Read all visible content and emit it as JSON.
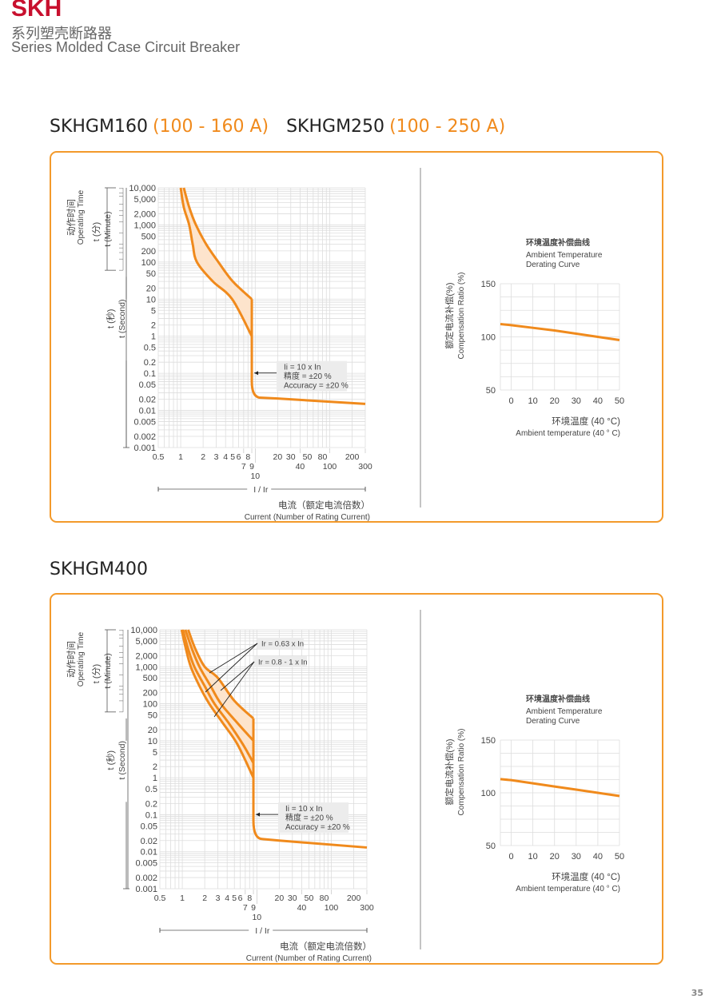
{
  "header": {
    "brand": "SKH",
    "subtitle_cn": "系列塑壳断路器",
    "subtitle_en": "Series Molded Case Circuit Breaker"
  },
  "sections": [
    {
      "models": [
        {
          "name": "SKHGM160",
          "range": "(100 - 160 A)"
        },
        {
          "name": "SKHGM250",
          "range": "(100 - 250 A)"
        }
      ]
    },
    {
      "models": [
        {
          "name": "SKHGM400",
          "range": ""
        }
      ]
    }
  ],
  "page_number": "35",
  "colors": {
    "accent": "#f08a1c",
    "brand": "#c8102e",
    "band_fill": "#fde4cc",
    "grid": "#dddddd"
  },
  "chart_data": [
    {
      "type": "line",
      "scale": "log-log",
      "title": "",
      "ylabel_cn": "动作时间",
      "ylabel_en": "Operating Time",
      "minute_label_cn": "t (分)",
      "minute_label_en": "t (Minute)",
      "second_label_cn": "t (秒)",
      "second_label_en": "t (Second)",
      "xaxis_symbol": "I / Ir",
      "xlabel_cn": "电流（额定电流倍数）",
      "xlabel_en": "Current (Number of Rating Current)",
      "xlim": [
        0.5,
        300
      ],
      "ylim": [
        0.001,
        10000
      ],
      "x_ticks": [
        "0.5",
        "1",
        "2",
        "3",
        "4",
        "5",
        "6",
        "7",
        "8",
        "9",
        "10",
        "20",
        "30",
        "40",
        "50",
        "80",
        "100",
        "200",
        "300"
      ],
      "y_ticks": [
        "10,000",
        "5,000",
        "2,000",
        "1,000",
        "500",
        "200",
        "100",
        "50",
        "20",
        "10",
        "5",
        "2",
        "1",
        "0.5",
        "0.2",
        "0.1",
        "0.05",
        "0.02",
        "0.01",
        "0.005",
        "0.002",
        "0.001"
      ],
      "grid": true,
      "annotations": [
        {
          "lines": [
            "Ii = 10 x In",
            "精度 = ±20 %",
            "Accuracy = ±20 %"
          ]
        }
      ],
      "series": [
        {
          "role": "band-upper",
          "points": [
            [
              1.1,
              10000
            ],
            [
              1.3,
              3000
            ],
            [
              1.6,
              1000
            ],
            [
              2.2,
              300
            ],
            [
              3.2,
              100
            ],
            [
              5,
              30
            ],
            [
              9,
              10
            ]
          ]
        },
        {
          "role": "band-lower",
          "points": [
            [
              1.0,
              10000
            ],
            [
              1.1,
              3000
            ],
            [
              1.3,
              1000
            ],
            [
              1.45,
              300
            ],
            [
              1.65,
              100
            ],
            [
              2.7,
              30
            ],
            [
              4.9,
              10
            ],
            [
              9,
              1
            ]
          ]
        },
        {
          "role": "instantaneous",
          "points": [
            [
              9,
              10
            ],
            [
              9,
              0.06
            ],
            [
              9.6,
              0.03
            ],
            [
              12,
              0.022
            ],
            [
              20,
              0.021
            ],
            [
              300,
              0.015
            ]
          ]
        }
      ]
    },
    {
      "type": "line",
      "title_cn": "环境温度补偿曲线",
      "title_en_1": "Ambient  Temperature",
      "title_en_2": "Derating Curve",
      "ylabel_cn": "额定电流补偿(%)",
      "ylabel_en": "Compensation Ratio (%)",
      "xlabel_cn": "环境温度 (40 °C)",
      "xlabel_en": "Ambient temperature (40 ° C)",
      "xlim": [
        -5,
        50
      ],
      "ylim": [
        50,
        150
      ],
      "x_ticks": [
        "0",
        "10",
        "20",
        "30",
        "40",
        "50"
      ],
      "y_ticks": [
        "150",
        "100",
        "50"
      ],
      "grid": true,
      "series": [
        {
          "points": [
            [
              -5,
              112
            ],
            [
              0,
              111
            ],
            [
              10,
              108.5
            ],
            [
              20,
              106
            ],
            [
              30,
              103
            ],
            [
              40,
              100
            ],
            [
              50,
              97
            ]
          ]
        }
      ]
    },
    {
      "type": "line",
      "scale": "log-log",
      "title": "",
      "ylabel_cn": "动作时间",
      "ylabel_en": "Operating Time",
      "minute_label_cn": "t (分)",
      "minute_label_en": "t (Minute)",
      "second_label_cn": "t (秒)",
      "second_label_en": "t (Second)",
      "xaxis_symbol": "I / Ir",
      "xlabel_cn": "电流（额定电流倍数）",
      "xlabel_en": "Current (Number of Rating Current)",
      "xlim": [
        0.5,
        300
      ],
      "ylim": [
        0.001,
        10000
      ],
      "x_ticks": [
        "0.5",
        "1",
        "2",
        "3",
        "4",
        "5",
        "6",
        "7",
        "8",
        "9",
        "10",
        "20",
        "30",
        "40",
        "50",
        "80",
        "100",
        "200",
        "300"
      ],
      "y_ticks": [
        "10,000",
        "5,000",
        "2,000",
        "1,000",
        "500",
        "200",
        "100",
        "50",
        "20",
        "10",
        "5",
        "2",
        "1",
        "0.5",
        "0.2",
        "0.1",
        "0.05",
        "0.02",
        "0.01",
        "0.005",
        "0.002",
        "0.001"
      ],
      "grid": true,
      "annotations": [
        {
          "lines": [
            "Ir = 0.63 x In"
          ]
        },
        {
          "lines": [
            "Ir = 0.8 - 1 x In"
          ]
        },
        {
          "lines": [
            "Ii = 10 x In",
            "精度 = ±20 %",
            "Accuracy = ±20 %"
          ]
        }
      ],
      "series": [
        {
          "role": "band-upper",
          "points": [
            [
              1.2,
              10000
            ],
            [
              1.5,
              3000
            ],
            [
              2.0,
              1000
            ],
            [
              3.0,
              500
            ],
            [
              5,
              120
            ],
            [
              9,
              40
            ]
          ]
        },
        {
          "role": "curve",
          "points": [
            [
              1.1,
              10000
            ],
            [
              1.35,
              3000
            ],
            [
              1.7,
              1000
            ],
            [
              2.4,
              300
            ],
            [
              3.3,
              100
            ],
            [
              5.5,
              30
            ],
            [
              9,
              10
            ]
          ]
        },
        {
          "role": "curve",
          "points": [
            [
              1.02,
              10000
            ],
            [
              1.2,
              3000
            ],
            [
              1.45,
              1000
            ],
            [
              2.0,
              300
            ],
            [
              2.7,
              100
            ],
            [
              4.2,
              30
            ],
            [
              6.5,
              8
            ],
            [
              9,
              2.5
            ]
          ]
        },
        {
          "role": "band-lower",
          "points": [
            [
              0.98,
              10000
            ],
            [
              1.12,
              3000
            ],
            [
              1.3,
              1000
            ],
            [
              1.7,
              300
            ],
            [
              2.3,
              100
            ],
            [
              3.5,
              30
            ],
            [
              5.5,
              8
            ],
            [
              9,
              1
            ]
          ]
        },
        {
          "role": "instantaneous",
          "points": [
            [
              9,
              40
            ],
            [
              9,
              0.07
            ],
            [
              9.6,
              0.035
            ],
            [
              12,
              0.022
            ],
            [
              20,
              0.02
            ],
            [
              300,
              0.013
            ]
          ]
        }
      ]
    },
    {
      "type": "line",
      "title_cn": "环境温度补偿曲线",
      "title_en_1": "Ambient  Temperature",
      "title_en_2": "Derating Curve",
      "ylabel_cn": "额定电流补偿(%)",
      "ylabel_en": "Compensation Ratio (%)",
      "xlabel_cn": "环境温度 (40 °C)",
      "xlabel_en": "Ambient temperature (40 ° C)",
      "xlim": [
        -5,
        50
      ],
      "ylim": [
        50,
        150
      ],
      "x_ticks": [
        "0",
        "10",
        "20",
        "30",
        "40",
        "50"
      ],
      "y_ticks": [
        "150",
        "100",
        "50"
      ],
      "grid": true,
      "series": [
        {
          "points": [
            [
              -5,
              113
            ],
            [
              0,
              112
            ],
            [
              10,
              109
            ],
            [
              20,
              106
            ],
            [
              30,
              103
            ],
            [
              40,
              100
            ],
            [
              50,
              97
            ]
          ]
        }
      ]
    }
  ]
}
